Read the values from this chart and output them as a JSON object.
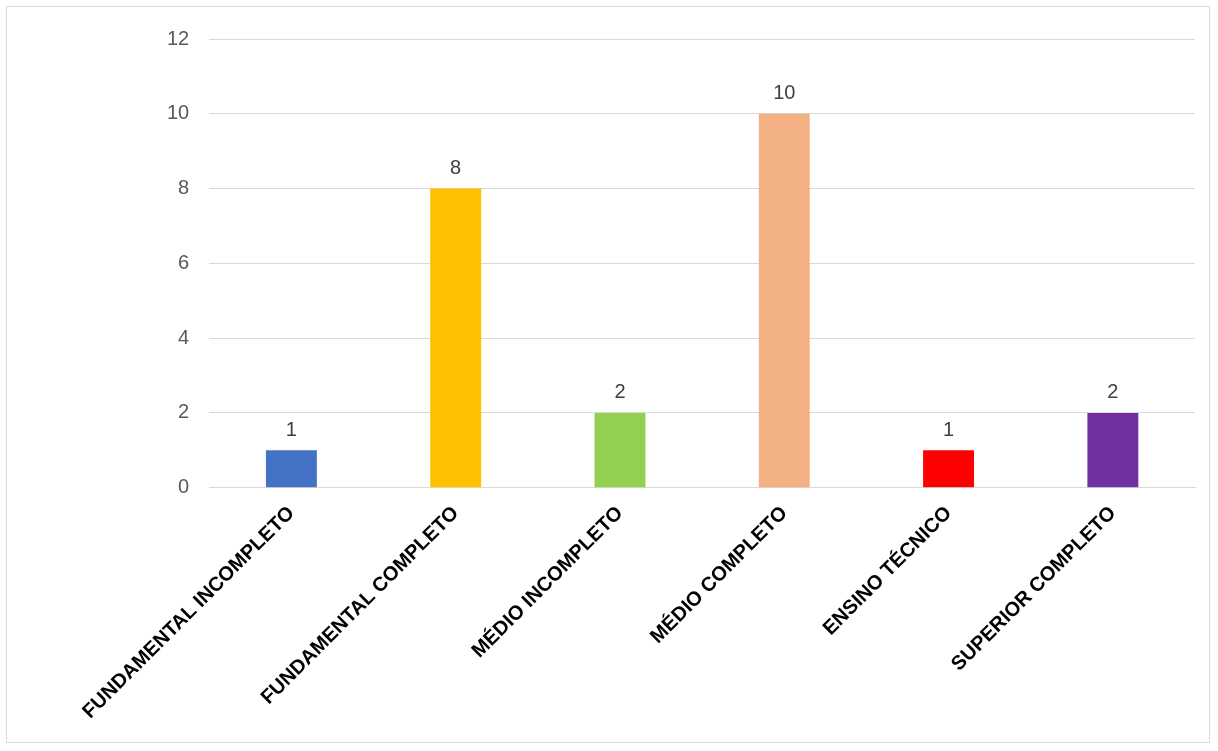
{
  "chart_data": {
    "type": "bar",
    "categories": [
      "FUNDAMENTAL INCOMPLETO",
      "FUNDAMENTAL COMPLETO",
      "MÉDIO INCOMPLETO",
      "MÉDIO COMPLETO",
      "ENSINO TÉCNICO",
      "SUPERIOR COMPLETO"
    ],
    "values": [
      1,
      8,
      2,
      10,
      1,
      2
    ],
    "colors": [
      "#4472c4",
      "#ffc000",
      "#92d050",
      "#f4b183",
      "#ff0000",
      "#7030a0"
    ],
    "ylim": [
      0,
      12
    ],
    "yticks": [
      0,
      2,
      4,
      6,
      8,
      10,
      12
    ],
    "grid": "y",
    "data_labels": true
  }
}
